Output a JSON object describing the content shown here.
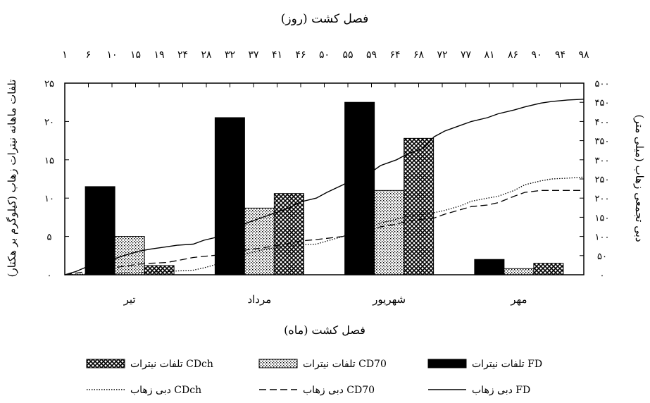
{
  "chart_data": {
    "type": "bar",
    "title": "فصل کشت (روز)",
    "xlabel": "فصل کشت (ماه)",
    "ylabel": "تلفات ماهانه نیترات زهاب (کیلوگرم بر هکتار)",
    "y2label": "دبی تجمعی زهاب (میلی متر)",
    "categories": [
      "تیر",
      "مرداد",
      "شهریور",
      "مهر"
    ],
    "ylim": [
      0,
      25
    ],
    "y_ticks": [
      "۰",
      "۵",
      "۱۰",
      "۱۵",
      "۲۰",
      "۲۵"
    ],
    "y2lim": [
      0,
      500
    ],
    "y2_ticks": [
      "۰",
      "۵۰",
      "۱۰۰",
      "۱۵۰",
      "۲۰۰",
      "۲۵۰",
      "۳۰۰",
      "۳۵۰",
      "۴۰۰",
      "۴۵۰",
      "۵۰۰"
    ],
    "xlim_days": [
      1,
      98
    ],
    "day_ticks": [
      "۱",
      "۶",
      "۱۰",
      "۱۵",
      "۱۹",
      "۲۴",
      "۲۸",
      "۳۲",
      "۳۷",
      "۴۱",
      "۴۶",
      "۵۰",
      "۵۵",
      "۵۹",
      "۶۴",
      "۶۸",
      "۷۲",
      "۷۷",
      "۸۱",
      "۸۶",
      "۹۰",
      "۹۴",
      "۹۸"
    ],
    "series": [
      {
        "name": "تلفات نیترات FD",
        "kind": "bar",
        "pattern": "solid",
        "values": [
          11.5,
          20.5,
          22.5,
          2.0
        ]
      },
      {
        "name": "تلفات نیترات CD70",
        "kind": "bar",
        "pattern": "dots",
        "values": [
          5.0,
          8.7,
          11.0,
          0.8
        ]
      },
      {
        "name": "تلفات نیترات CDch",
        "kind": "bar",
        "pattern": "cross",
        "values": [
          1.2,
          10.6,
          17.8,
          1.5
        ]
      },
      {
        "name": "دبی زهاب FD",
        "kind": "line",
        "style": "solid",
        "x": [
          1,
          3,
          5,
          7,
          10,
          12,
          15,
          17,
          20,
          22,
          25,
          27,
          30,
          33,
          35,
          38,
          40,
          43,
          45,
          48,
          50,
          53,
          55,
          58,
          60,
          63,
          65,
          68,
          70,
          72,
          75,
          77,
          80,
          82,
          85,
          87,
          90,
          92,
          95,
          98
        ],
        "y": [
          0,
          8,
          20,
          30,
          40,
          50,
          62,
          67,
          73,
          77,
          80,
          90,
          100,
          120,
          135,
          150,
          160,
          175,
          190,
          200,
          215,
          235,
          250,
          265,
          285,
          300,
          315,
          330,
          360,
          375,
          390,
          400,
          410,
          420,
          430,
          438,
          448,
          452,
          456,
          458
        ]
      },
      {
        "name": "دبی زهاب CD70",
        "kind": "line",
        "style": "dashed",
        "x": [
          1,
          3,
          5,
          7,
          10,
          12,
          15,
          17,
          20,
          22,
          25,
          27,
          30,
          33,
          35,
          38,
          40,
          43,
          45,
          48,
          50,
          53,
          55,
          58,
          60,
          63,
          65,
          68,
          70,
          72,
          75,
          77,
          80,
          82,
          85,
          87,
          90,
          92,
          95,
          98
        ],
        "y": [
          0,
          4,
          8,
          12,
          18,
          22,
          28,
          30,
          32,
          37,
          45,
          48,
          52,
          58,
          65,
          70,
          75,
          82,
          88,
          92,
          95,
          100,
          110,
          118,
          125,
          132,
          140,
          145,
          148,
          158,
          170,
          178,
          182,
          188,
          205,
          215,
          220,
          220,
          220,
          220
        ]
      },
      {
        "name": "دبی زهاب CDch",
        "kind": "line",
        "style": "dotted",
        "x": [
          1,
          3,
          5,
          7,
          10,
          12,
          15,
          17,
          20,
          22,
          25,
          27,
          30,
          33,
          35,
          38,
          40,
          43,
          45,
          48,
          50,
          53,
          55,
          58,
          60,
          63,
          65,
          68,
          70,
          72,
          75,
          77,
          80,
          82,
          85,
          87,
          90,
          92,
          95,
          98
        ],
        "y": [
          0,
          1,
          2,
          3,
          4,
          5,
          6,
          7,
          8,
          10,
          12,
          18,
          30,
          45,
          55,
          65,
          70,
          75,
          78,
          80,
          88,
          100,
          112,
          125,
          135,
          145,
          152,
          158,
          162,
          168,
          180,
          192,
          200,
          205,
          220,
          235,
          245,
          250,
          252,
          255
        ]
      }
    ],
    "legend_position": "bottom",
    "grid": false
  },
  "colors": {
    "ink": "#000000",
    "bar_fill": "#000000",
    "dots_bg": "#ffffff",
    "cross_bg": "#ffffff"
  }
}
